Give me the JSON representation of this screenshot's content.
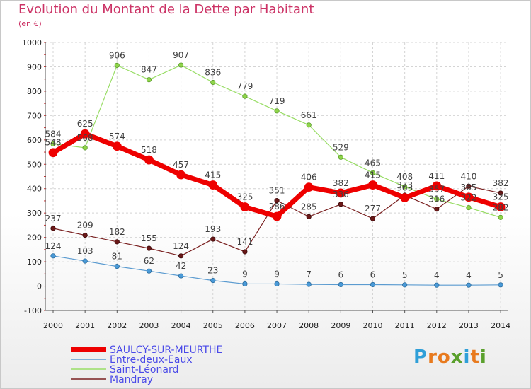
{
  "title": "Evolution du Montant de la Dette par Habitant",
  "unit": "(en €)",
  "logo": {
    "text": "Proxiti",
    "letters": [
      "P",
      "r",
      "o",
      "x",
      "i",
      "t",
      "i"
    ],
    "colors": [
      "#2f9fd8",
      "#e87a1e",
      "#e87a1e",
      "#5aa02c",
      "#2f9fd8",
      "#e87a1e",
      "#5aa02c"
    ]
  },
  "chart_data": {
    "type": "line",
    "title": "Evolution du Montant de la Dette par Habitant",
    "ylabel": "(en €)",
    "xlabel": "",
    "categories": [
      "2000",
      "2001",
      "2002",
      "2003",
      "2004",
      "2005",
      "2006",
      "2007",
      "2008",
      "2009",
      "2010",
      "2011",
      "2012",
      "2013",
      "2014"
    ],
    "ylim": [
      -100,
      1000
    ],
    "yticks": [
      "-100",
      "0",
      "100",
      "200",
      "300",
      "400",
      "500",
      "600",
      "700",
      "800",
      "900",
      "1000"
    ],
    "grid": true,
    "legend_position": "bottom-left",
    "series": [
      {
        "name": "SAULCY-SUR-MEURTHE",
        "color": "#ee0000",
        "values": [
          548,
          625,
          574,
          518,
          457,
          415,
          325,
          286,
          406,
          382,
          415,
          363,
          411,
          365,
          325
        ],
        "labels": [
          "548",
          "625",
          "574",
          "518",
          "457",
          "415",
          "325",
          "286",
          "406",
          "382",
          "415",
          "363",
          "411",
          "365",
          "325"
        ]
      },
      {
        "name": "Entre-deux-Eaux",
        "color": "#5b9bd0",
        "values": [
          124,
          103,
          81,
          62,
          42,
          23,
          9,
          9,
          7,
          6,
          6,
          5,
          4,
          4,
          5
        ],
        "labels": [
          "124",
          "103",
          "81",
          "62",
          "42",
          "23",
          "9",
          "9",
          "7",
          "6",
          "6",
          "5",
          "4",
          "4",
          "5"
        ]
      },
      {
        "name": "Saint-Léonard",
        "color": "#99dd66",
        "values": [
          584,
          568,
          906,
          847,
          907,
          836,
          779,
          719,
          661,
          529,
          465,
          408,
          357,
          322,
          282
        ],
        "labels": [
          "584",
          "568",
          "906",
          "847",
          "907",
          "836",
          "779",
          "719",
          "661",
          "529",
          "465",
          "408",
          "357",
          "322",
          "282"
        ]
      },
      {
        "name": "Mandray",
        "color": "#7a2020",
        "values": [
          237,
          209,
          182,
          155,
          124,
          193,
          141,
          351,
          285,
          336,
          277,
          373,
          316,
          410,
          382
        ],
        "labels": [
          "237",
          "209",
          "182",
          "155",
          "124",
          "193",
          "141",
          "351",
          "285",
          "336",
          "277",
          "373",
          "316",
          "410",
          "382"
        ]
      }
    ]
  }
}
